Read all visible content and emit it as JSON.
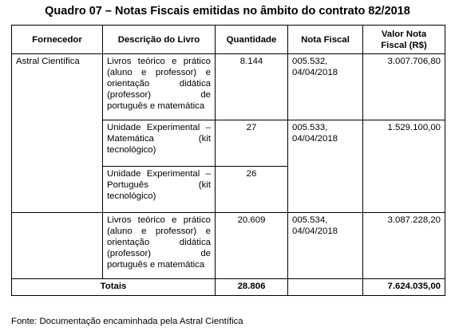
{
  "title": "Quadro 07 – Notas Fiscais emitidas no âmbito do contrato 82/2018",
  "headers": {
    "fornecedor": "Fornecedor",
    "descricao": "Descrição do Livro",
    "quantidade": "Quantidade",
    "nota_fiscal": "Nota Fiscal",
    "valor_line1": "Valor Nota",
    "valor_line2": "Fiscal (R$)"
  },
  "rows": [
    {
      "fornecedor": "Astral Científica",
      "descricao_lines": [
        "Livros teórico e prático",
        "(aluno e professor) e",
        "orientação didática",
        "(professor) de",
        "português e matemática"
      ],
      "quantidade": "8.144",
      "nota_line1": "005.532,",
      "nota_line2": "04/04/2018",
      "valor": "3.007.706,80"
    },
    {
      "descricao_lines": [
        "Unidade Experimental –",
        "Matemática (kit",
        "tecnológico)"
      ],
      "quantidade": "27",
      "nota_line1": "005.533,",
      "nota_line2": "04/04/2018",
      "valor": "1.529.100,00"
    },
    {
      "descricao_lines": [
        "Unidade Experimental –",
        "Português (kit",
        "tecnológico)"
      ],
      "quantidade": "26"
    },
    {
      "descricao_lines": [
        "Livros teórico e prático",
        "(aluno e professor) e",
        "orientação didática",
        "(professor) de",
        "português e matemática"
      ],
      "quantidade": "20.609",
      "nota_line1": "005.534,",
      "nota_line2": "04/04/2018",
      "valor": "3.087.228,20"
    }
  ],
  "totals": {
    "label": "Totais",
    "quantidade": "28.806",
    "valor": "7.624.035,00"
  },
  "source": "Fonte: Documentação encaminhada pela Astral Científica"
}
